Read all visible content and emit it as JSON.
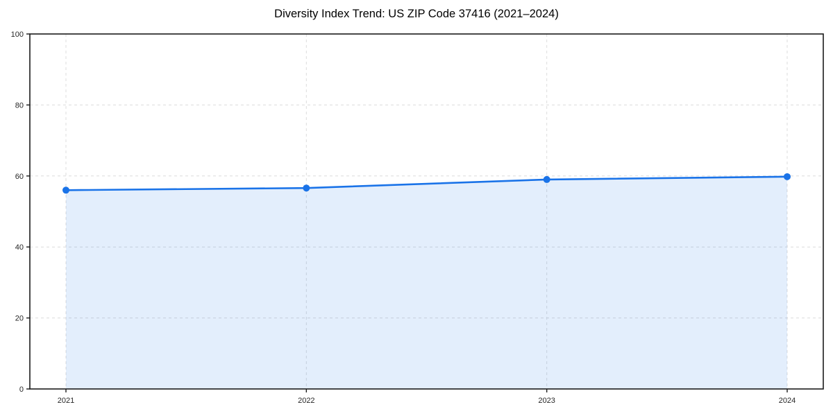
{
  "chart_data": {
    "type": "line",
    "title": "Diversity Index Trend: US ZIP Code 37416 (2021–2024)",
    "x": [
      "2021",
      "2022",
      "2023",
      "2024"
    ],
    "series": [
      {
        "name": "Diversity Index",
        "values": [
          56.0,
          56.6,
          59.0,
          59.8
        ]
      }
    ],
    "xlabel": "",
    "ylabel": "",
    "ylim": [
      0,
      100
    ],
    "yticks": [
      0,
      20,
      40,
      60,
      80,
      100
    ],
    "grid": true,
    "grid_style": "dashed",
    "legend_position": "none",
    "colors": {
      "line": "#1a73e8",
      "marker": "#1a73e8",
      "fill": "rgba(26,115,232,0.12)",
      "grid": "#dcdcdc",
      "spine": "#1a1a1a",
      "background": "#ffffff"
    }
  }
}
